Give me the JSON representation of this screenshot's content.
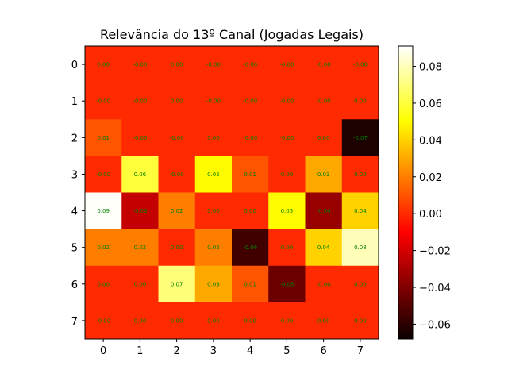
{
  "chart_data": {
    "type": "heatmap",
    "title": "Relevância do 13º Canal (Jogadas Legais)",
    "xlabel": "",
    "ylabel": "",
    "colormap": "hot",
    "vmin": -0.068,
    "vmax": 0.091,
    "x_ticks": [
      "0",
      "1",
      "2",
      "3",
      "4",
      "5",
      "6",
      "7"
    ],
    "y_ticks": [
      "0",
      "1",
      "2",
      "3",
      "4",
      "5",
      "6",
      "7"
    ],
    "colorbar_ticks": [
      {
        "value": 0.08,
        "label": "0.08"
      },
      {
        "value": 0.06,
        "label": "0.06"
      },
      {
        "value": 0.04,
        "label": "0.04"
      },
      {
        "value": 0.02,
        "label": "0.02"
      },
      {
        "value": 0.0,
        "label": "0.00"
      },
      {
        "value": -0.02,
        "label": "−0.02"
      },
      {
        "value": -0.04,
        "label": "−0.04"
      },
      {
        "value": -0.06,
        "label": "−0.06"
      }
    ],
    "label_color": "#008000",
    "values": [
      [
        0.0,
        -0.0,
        0.0,
        -0.0,
        -0.0,
        -0.0,
        -0.0,
        -0.0
      ],
      [
        -0.0,
        -0.0,
        0.0,
        -0.0,
        -0.0,
        -0.0,
        -0.0,
        0.0
      ],
      [
        0.01,
        -0.0,
        -0.0,
        0.0,
        -0.0,
        -0.0,
        0.0,
        -0.07
      ],
      [
        -0.0,
        0.06,
        -0.0,
        0.05,
        0.01,
        0.0,
        0.03,
        0.0
      ],
      [
        0.09,
        -0.03,
        0.02,
        0.0,
        0.0,
        0.05,
        -0.04,
        0.04
      ],
      [
        0.02,
        0.02,
        0.0,
        0.02,
        -0.06,
        0.0,
        0.04,
        0.08
      ],
      [
        0.0,
        0.0,
        0.07,
        0.03,
        0.01,
        -0.05,
        -0.0,
        0.0
      ],
      [
        -0.0,
        0.0,
        0.0,
        0.0,
        0.0,
        0.0,
        0.0,
        0.0
      ]
    ],
    "labels": [
      [
        "0.00",
        "-0.00",
        "0.00",
        "-0.00",
        "-0.00",
        "-0.00",
        "-0.00",
        "-0.00"
      ],
      [
        "-0.00",
        "-0.00",
        "0.00",
        "-0.00",
        "-0.00",
        "-0.00",
        "-0.00",
        "0.00"
      ],
      [
        "0.01",
        "-0.00",
        "-0.00",
        "0.00",
        "-0.00",
        "-0.00",
        "0.00",
        "-0.07"
      ],
      [
        "-0.00",
        "0.06",
        "-0.00",
        "0.05",
        "0.01",
        "0.00",
        "0.03",
        "0.00"
      ],
      [
        "0.09",
        "-0.03",
        "0.02",
        "0.00",
        "0.00",
        "0.05",
        "-0.04",
        "0.04"
      ],
      [
        "0.02",
        "0.02",
        "0.00",
        "0.02",
        "-0.06",
        "0.00",
        "0.04",
        "0.08"
      ],
      [
        "0.00",
        "0.00",
        "0.07",
        "0.03",
        "0.01",
        "-0.05",
        "-0.00",
        "0.00"
      ],
      [
        "-0.00",
        "0.00",
        "0.00",
        "0.00",
        "0.00",
        "0.00",
        "0.00",
        "0.00"
      ]
    ]
  }
}
